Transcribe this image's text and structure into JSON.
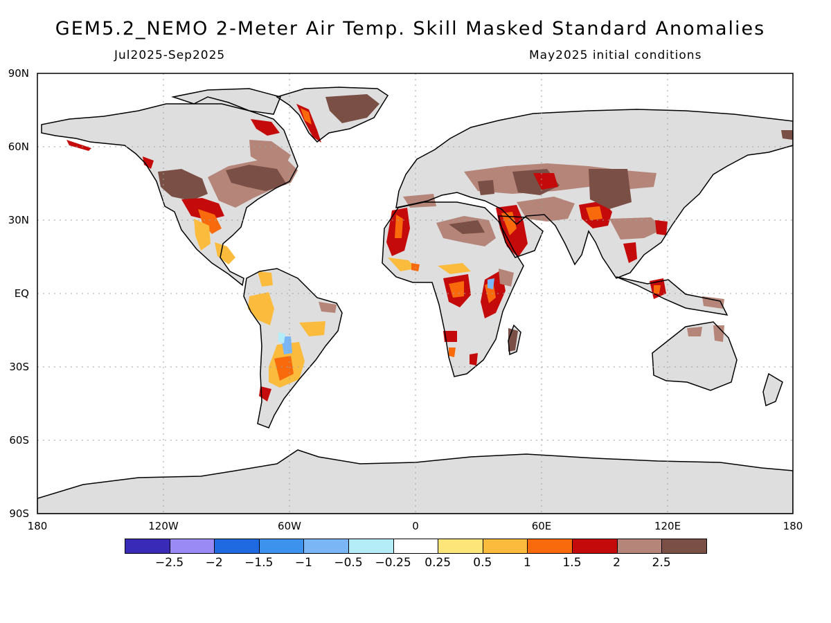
{
  "title": "GEM5.2_NEMO 2-Meter Air Temp. Skill Masked Standard Anomalies",
  "subtitle_left": "Jul2025-Sep2025",
  "subtitle_right": "May2025 initial conditions",
  "lat_labels": [
    "90N",
    "60N",
    "30N",
    "EQ",
    "30S",
    "60S",
    "90S"
  ],
  "lon_labels": [
    "180",
    "120W",
    "60W",
    "0",
    "60E",
    "120E",
    "180"
  ],
  "colorbar": {
    "colors": [
      "#3a2ab8",
      "#9a8af5",
      "#1f6ae0",
      "#3d92ee",
      "#7ab6f5",
      "#b4ecf8",
      "#ffffff",
      "#fde57a",
      "#fbbb3c",
      "#f86a0c",
      "#c40a0a",
      "#b5857a",
      "#7a4f45"
    ],
    "labels": [
      "−2.5",
      "−2",
      "−1.5",
      "−1",
      "−0.5",
      "−0.25",
      "0.25",
      "0.5",
      "1",
      "1.5",
      "2",
      "2.5"
    ]
  },
  "colors": {
    "land": "#dedede",
    "coast": "#000000",
    "grid": "#a0a0a0"
  }
}
